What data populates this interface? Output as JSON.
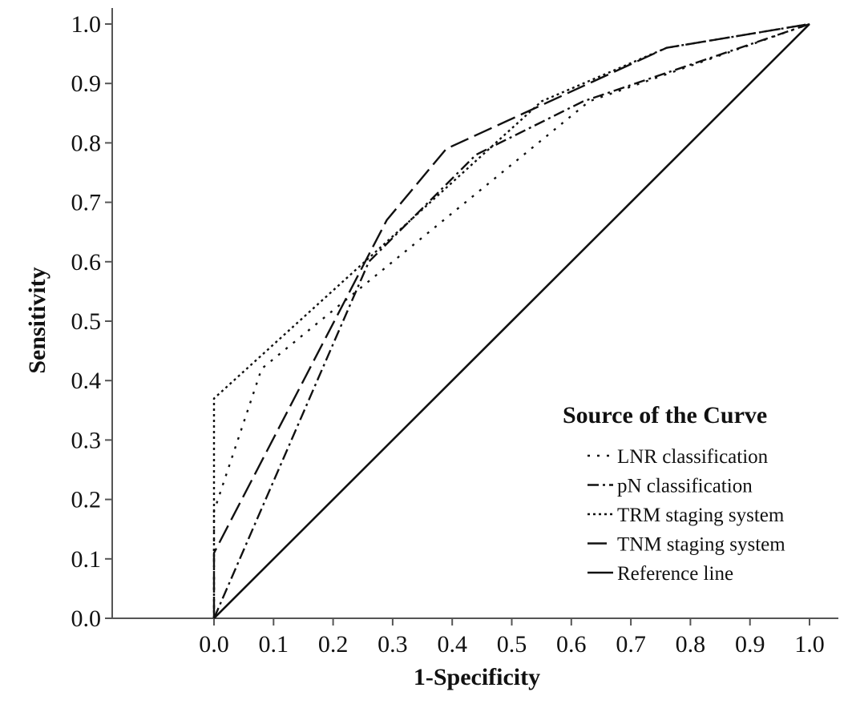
{
  "chart_data": {
    "type": "line",
    "xlabel": "1-Specificity",
    "ylabel": "Sensitivity",
    "xlim": [
      0.0,
      1.0
    ],
    "ylim": [
      0.0,
      1.0
    ],
    "x_ticks": [
      "0.0",
      "0.1",
      "0.2",
      "0.3",
      "0.4",
      "0.5",
      "0.6",
      "0.7",
      "0.8",
      "0.9",
      "1.0"
    ],
    "y_ticks": [
      "0.0",
      "0.1",
      "0.2",
      "0.3",
      "0.4",
      "0.5",
      "0.6",
      "0.7",
      "0.8",
      "0.9",
      "1.0"
    ],
    "grid": false,
    "legend": {
      "title": "Source of the Curve",
      "placement": "bottom-right"
    },
    "series": [
      {
        "name": "LNR classification",
        "style": "dotted-sparse",
        "x": [
          0.0,
          0.0,
          0.08,
          0.63,
          1.0
        ],
        "y": [
          0.0,
          0.18,
          0.42,
          0.87,
          1.0
        ]
      },
      {
        "name": "pN classification",
        "style": "dash-dot",
        "x": [
          0.0,
          0.26,
          0.44,
          0.62,
          1.0
        ],
        "y": [
          0.0,
          0.6,
          0.78,
          0.87,
          1.0
        ]
      },
      {
        "name": "TRM staging system",
        "style": "dotted",
        "x": [
          0.0,
          0.0,
          0.55,
          0.76,
          1.0
        ],
        "y": [
          0.0,
          0.37,
          0.87,
          0.96,
          1.0
        ]
      },
      {
        "name": "TNM staging system",
        "style": "long-dash",
        "x": [
          0.0,
          0.0,
          0.29,
          0.39,
          0.76,
          1.0
        ],
        "y": [
          0.0,
          0.11,
          0.67,
          0.79,
          0.96,
          1.0
        ]
      },
      {
        "name": "Reference line",
        "style": "solid",
        "x": [
          0.0,
          1.0
        ],
        "y": [
          0.0,
          1.0
        ]
      }
    ],
    "colors": {
      "line": "#111111",
      "background": "#ffffff"
    }
  }
}
